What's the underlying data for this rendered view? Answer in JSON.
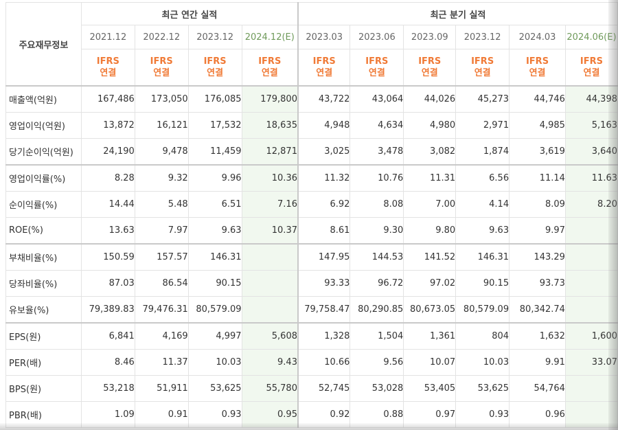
{
  "header": {
    "label_col": "주요재무정보",
    "annual_group": "최근 연간 실적",
    "quarter_group": "최근 분기 실적"
  },
  "periods": [
    {
      "label": "2021.12",
      "ifrs_top": "IFRS",
      "ifrs_bottom": "연결",
      "estimate": false
    },
    {
      "label": "2022.12",
      "ifrs_top": "IFRS",
      "ifrs_bottom": "연결",
      "estimate": false
    },
    {
      "label": "2023.12",
      "ifrs_top": "IFRS",
      "ifrs_bottom": "연결",
      "estimate": false
    },
    {
      "label": "2024.12(E)",
      "ifrs_top": "IFRS",
      "ifrs_bottom": "연결",
      "estimate": true
    },
    {
      "label": "2023.03",
      "ifrs_top": "IFRS",
      "ifrs_bottom": "연결",
      "estimate": false
    },
    {
      "label": "2023.06",
      "ifrs_top": "IFRS",
      "ifrs_bottom": "연결",
      "estimate": false
    },
    {
      "label": "2023.09",
      "ifrs_top": "IFRS",
      "ifrs_bottom": "연결",
      "estimate": false
    },
    {
      "label": "2023.12",
      "ifrs_top": "IFRS",
      "ifrs_bottom": "연결",
      "estimate": false
    },
    {
      "label": "2024.03",
      "ifrs_top": "IFRS",
      "ifrs_bottom": "연결",
      "estimate": false
    },
    {
      "label": "2024.06(E)",
      "ifrs_top": "IFRS",
      "ifrs_bottom": "연결",
      "estimate": true
    }
  ],
  "rows": [
    {
      "label": "매출액(억원)",
      "values": [
        "167,486",
        "173,050",
        "176,085",
        "179,800",
        "43,722",
        "43,064",
        "44,026",
        "45,273",
        "44,746",
        "44,398"
      ]
    },
    {
      "label": "영업이익(억원)",
      "values": [
        "13,872",
        "16,121",
        "17,532",
        "18,635",
        "4,948",
        "4,634",
        "4,980",
        "2,971",
        "4,985",
        "5,163"
      ]
    },
    {
      "label": "당기순이익(억원)",
      "values": [
        "24,190",
        "9,478",
        "11,459",
        "12,871",
        "3,025",
        "3,478",
        "3,082",
        "1,874",
        "3,619",
        "3,640"
      ]
    },
    {
      "label": "영업이익률(%)",
      "values": [
        "8.28",
        "9.32",
        "9.96",
        "10.36",
        "11.32",
        "10.76",
        "11.31",
        "6.56",
        "11.14",
        "11.63"
      ]
    },
    {
      "label": "순이익률(%)",
      "values": [
        "14.44",
        "5.48",
        "6.51",
        "7.16",
        "6.92",
        "8.08",
        "7.00",
        "4.14",
        "8.09",
        "8.20"
      ]
    },
    {
      "label": "ROE(%)",
      "values": [
        "13.63",
        "7.97",
        "9.63",
        "10.37",
        "8.61",
        "9.30",
        "9.80",
        "9.63",
        "9.97",
        ""
      ]
    },
    {
      "label": "부채비율(%)",
      "values": [
        "150.59",
        "157.57",
        "146.31",
        "",
        "147.95",
        "144.53",
        "141.52",
        "146.31",
        "143.29",
        ""
      ]
    },
    {
      "label": "당좌비율(%)",
      "values": [
        "87.03",
        "86.54",
        "90.15",
        "",
        "93.33",
        "96.72",
        "97.02",
        "90.15",
        "93.73",
        ""
      ]
    },
    {
      "label": "유보율(%)",
      "values": [
        "79,389.83",
        "79,476.31",
        "80,579.09",
        "",
        "79,758.47",
        "80,290.85",
        "80,673.05",
        "80,579.09",
        "80,342.74",
        ""
      ]
    },
    {
      "label": "EPS(원)",
      "values": [
        "6,841",
        "4,169",
        "4,997",
        "5,608",
        "1,328",
        "1,504",
        "1,361",
        "804",
        "1,632",
        "1,600"
      ]
    },
    {
      "label": "PER(배)",
      "values": [
        "8.46",
        "11.37",
        "10.03",
        "9.43",
        "10.66",
        "9.56",
        "10.07",
        "10.03",
        "9.91",
        "33.07"
      ]
    },
    {
      "label": "BPS(원)",
      "values": [
        "53,218",
        "51,911",
        "53,625",
        "55,780",
        "52,745",
        "53,028",
        "53,405",
        "53,625",
        "54,764",
        ""
      ]
    },
    {
      "label": "PBR(배)",
      "values": [
        "1.09",
        "0.91",
        "0.93",
        "0.95",
        "0.92",
        "0.88",
        "0.97",
        "0.93",
        "0.96",
        ""
      ]
    }
  ],
  "colors": {
    "ifrs_orange": "#f07a36",
    "estimate_bg": "#f1f8ef",
    "estimate_text": "#6f9a5a",
    "grid": "#e3e3e3"
  }
}
